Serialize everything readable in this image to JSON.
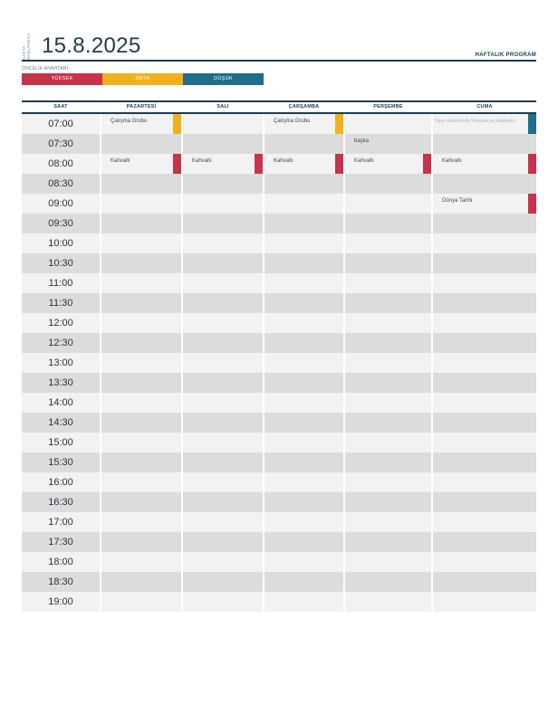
{
  "header": {
    "week_start_label": "HAFTA BAŞLANGICI",
    "date": "15.8.2025",
    "title": "HAFTALIK PROGRAM"
  },
  "priority_key": {
    "label": "ÖNCELİK ANAHTARI:",
    "items": [
      {
        "label": "YÜKSEK",
        "color": "#c8334a"
      },
      {
        "label": "ORTA",
        "color": "#f2b11c"
      },
      {
        "label": "DÜŞÜK",
        "color": "#1f6f8b"
      }
    ]
  },
  "columns": [
    "SAAT",
    "PAZARTESİ",
    "SALI",
    "ÇARŞAMBA",
    "PERŞEMBE",
    "CUMA"
  ],
  "times": [
    "07:00",
    "07:30",
    "08:00",
    "08:30",
    "09:00",
    "09:30",
    "10:00",
    "10:30",
    "11:00",
    "11:30",
    "12:00",
    "12:30",
    "13:00",
    "13:30",
    "14:00",
    "14:30",
    "15:00",
    "15:30",
    "16:00",
    "16:30",
    "17:00",
    "17:30",
    "18:00",
    "18:30",
    "19:00"
  ],
  "events": [
    {
      "row": 0,
      "col": 1,
      "text": "Çalışma Grubu",
      "priority": "ORTA",
      "color": "#f2b11c"
    },
    {
      "row": 0,
      "col": 3,
      "text": "Çalışma Grubu",
      "priority": "ORTA",
      "color": "#f2b11c"
    },
    {
      "row": 0,
      "col": 5,
      "text": "Spor salonunda Vinyasa'ya başlayın",
      "priority": "DÜŞÜK",
      "color": "#1f6f8b",
      "faint": true
    },
    {
      "row": 1,
      "col": 4,
      "text": "başka",
      "priority": "",
      "color": ""
    },
    {
      "row": 2,
      "col": 1,
      "text": "Kahvaltı",
      "priority": "YÜKSEK",
      "color": "#c8334a"
    },
    {
      "row": 2,
      "col": 2,
      "text": "Kahvaltı",
      "priority": "YÜKSEK",
      "color": "#c8334a"
    },
    {
      "row": 2,
      "col": 3,
      "text": "Kahvaltı",
      "priority": "YÜKSEK",
      "color": "#c8334a"
    },
    {
      "row": 2,
      "col": 4,
      "text": "Kahvaltı",
      "priority": "YÜKSEK",
      "color": "#c8334a"
    },
    {
      "row": 2,
      "col": 5,
      "text": "Kahvaltı",
      "priority": "YÜKSEK",
      "color": "#c8334a"
    },
    {
      "row": 4,
      "col": 5,
      "text": "Dünya Tarihi",
      "priority": "YÜKSEK",
      "color": "#c8334a"
    }
  ]
}
